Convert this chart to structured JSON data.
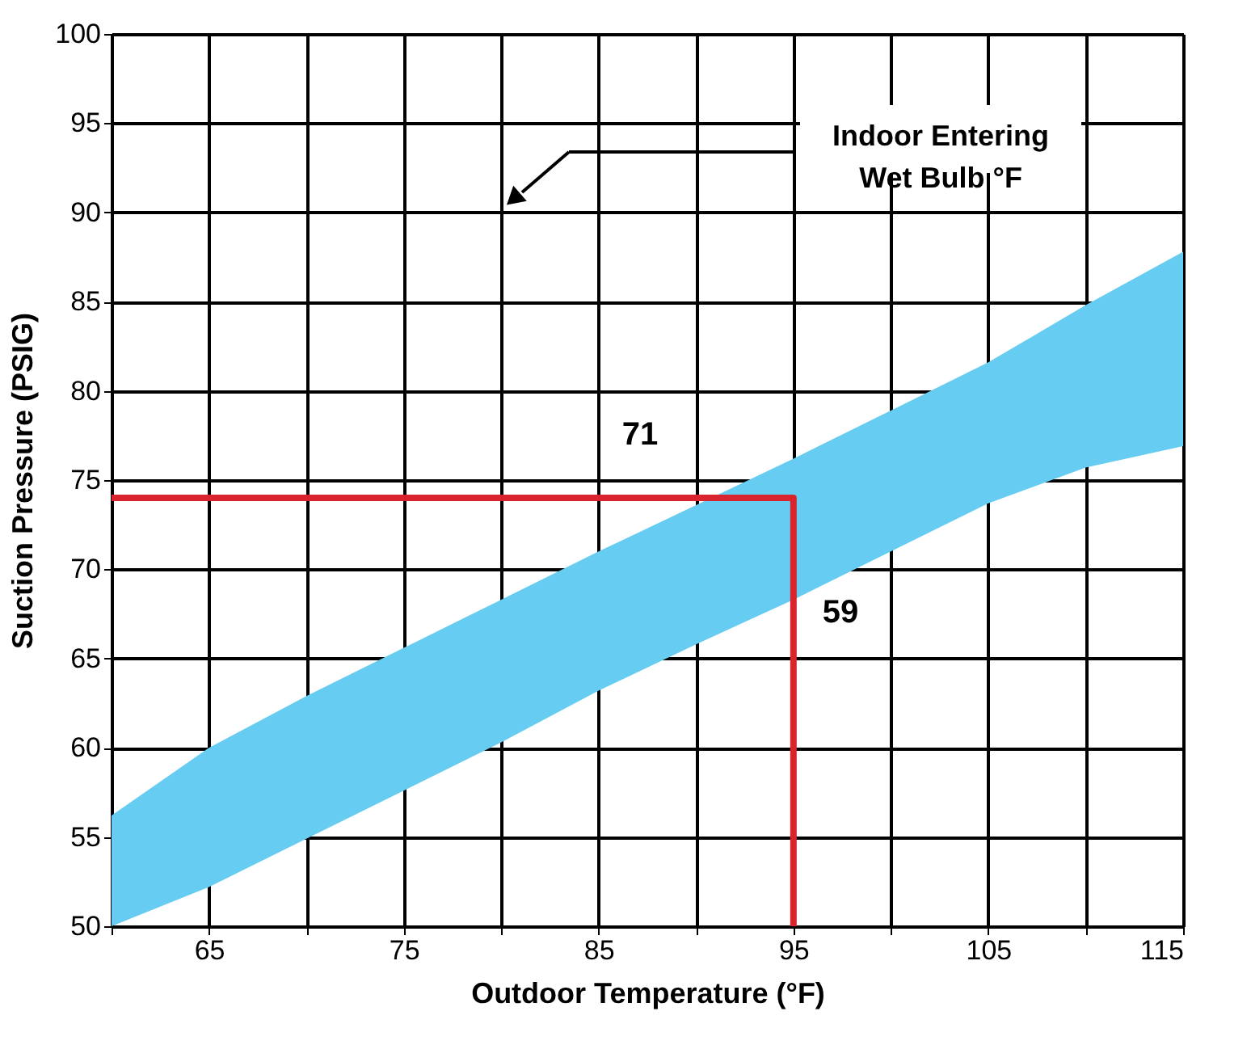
{
  "chart_data": {
    "type": "area",
    "xlabel": "Outdoor Temperature (°F)",
    "ylabel": "Suction Pressure (PSIG)",
    "xlim": [
      60,
      115
    ],
    "ylim": [
      50,
      100
    ],
    "xticks": [
      {
        "value": 60,
        "label": null
      },
      65,
      {
        "value": 70,
        "label": null
      },
      75,
      {
        "value": 80,
        "label": null
      },
      85,
      {
        "value": 90,
        "label": null
      },
      95,
      {
        "value": 100,
        "label": null
      },
      105,
      {
        "value": 110,
        "label": null
      },
      115
    ],
    "yticks": [
      50,
      55,
      60,
      65,
      70,
      75,
      80,
      85,
      90,
      95,
      100
    ],
    "grid": true,
    "series": [
      {
        "color": "#66ccf2",
        "x": [
          60,
          65,
          70,
          75,
          80,
          85,
          90,
          95,
          100,
          105,
          110,
          115
        ],
        "values": [
          null,
          null,
          null,
          null,
          null,
          null,
          null,
          null,
          null,
          null,
          null,
          null
        ],
        "lower": [
          50,
          52.2,
          54.9,
          57.6,
          60.3,
          63.2,
          65.8,
          68.3,
          71,
          73.7,
          75.7,
          76.9
        ],
        "upper": [
          56.2,
          60,
          62.9,
          65.6,
          68.3,
          71,
          73.6,
          76.2,
          78.9,
          81.6,
          84.8,
          87.8
        ]
      },
      {
        "type": "line",
        "color": "#d9232d",
        "x": [
          60,
          95,
          95
        ],
        "values": [
          74,
          74,
          50
        ]
      }
    ],
    "annotations": [
      "71",
      "59",
      "Indoor Entering\nWet Bulb °F"
    ]
  }
}
